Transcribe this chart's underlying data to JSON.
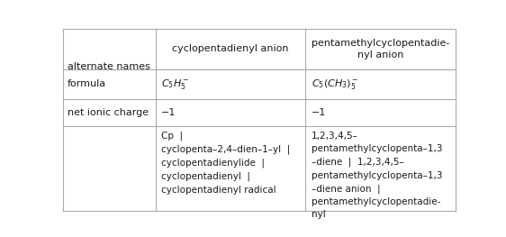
{
  "col_header1": "cyclopentadienyl anion",
  "col_header2": "pentamethylcyclopentadie-\nnyl anion",
  "row_labels": [
    "formula",
    "net ionic charge",
    "alternate names"
  ],
  "formula_col1": "$C_5H_5^-$",
  "formula_col2": "$C_5(CH_3)_5^-$",
  "charge_col1": "−1",
  "charge_col2": "−1",
  "names_col1": "Cp  |\ncyclopenta–2,4–dien–1–yl  |\ncyclopentadienylide  |\ncyclopentadienyl  |\ncyclopentadienyl radical",
  "names_col2": "1,2,3,4,5–\npentamethylcyclopenta–1,3\n–diene  |  1,2,3,4,5–\npentamethylcyclopenta–1,3\n–diene anion  |\npentamethylcyclopentadie-\nnyl",
  "bg_color": "#ffffff",
  "border_color": "#aaaaaa",
  "text_color": "#1a1a1a",
  "font_size": 8.0,
  "col_bounds": [
    0.0,
    0.235,
    0.617,
    1.0
  ],
  "row_bounds": [
    1.0,
    0.775,
    0.615,
    0.465,
    0.0
  ]
}
